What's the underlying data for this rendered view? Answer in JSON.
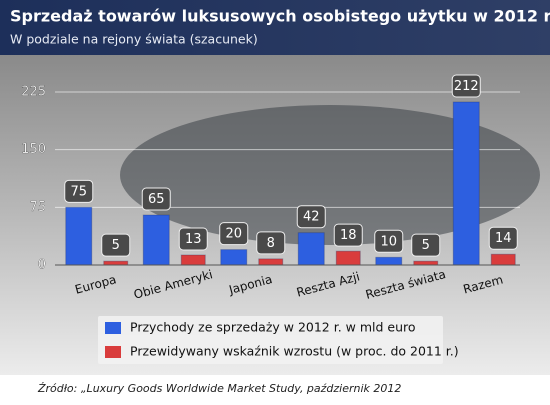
{
  "chart_data": {
    "type": "bar",
    "title": "Sprzedaż towarów luksusowych osobistego użytku w 2012 r.",
    "subtitle": "W podziale na rejony świata (szacunek)",
    "categories": [
      "Europa",
      "Obie Ameryki",
      "Japonia",
      "Reszta Azji",
      "Reszta świata",
      "Razem"
    ],
    "series": [
      {
        "name": "Przychody ze sprzedaży w 2012 r. w mld euro",
        "color": "#2d5fe0",
        "values": [
          75,
          65,
          20,
          42,
          10,
          212
        ]
      },
      {
        "name": "Przewidywany wskaźnik wzrostu (w proc. do 2011 r.)",
        "color": "#d93c3c",
        "values": [
          5,
          13,
          8,
          18,
          5,
          14
        ]
      }
    ],
    "ylim": [
      0,
      225
    ],
    "yticks": [
      0,
      75,
      150,
      225
    ],
    "grid": true,
    "source": "Źródło: „Luxury Goods Worldwide Market Study, październik 2012"
  }
}
